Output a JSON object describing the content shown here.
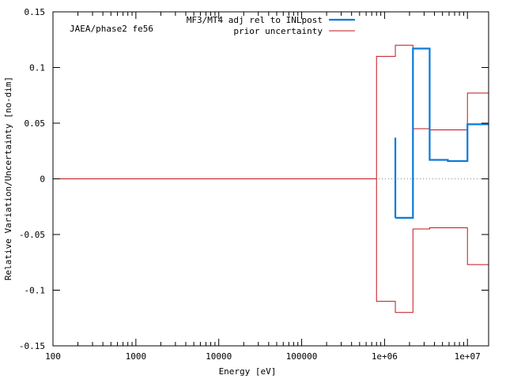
{
  "chart_data": {
    "type": "line",
    "annotation": "JAEA/phase2 fe56",
    "xlabel": "Energy [eV]",
    "ylabel": "Relative Variation/Uncertainty [no-dim]",
    "xscale": "log",
    "xlim": [
      100,
      18000000
    ],
    "ylim": [
      -0.15,
      0.15
    ],
    "x_ticks": [
      {
        "value": 100,
        "label": "100"
      },
      {
        "value": 1000,
        "label": "1000"
      },
      {
        "value": 10000,
        "label": "10000"
      },
      {
        "value": 100000,
        "label": "100000"
      },
      {
        "value": 1000000,
        "label": "1e+06"
      },
      {
        "value": 10000000,
        "label": "1e+07"
      }
    ],
    "y_ticks": [
      {
        "value": 0.15,
        "label": "0.15"
      },
      {
        "value": 0.1,
        "label": "0.1"
      },
      {
        "value": 0.05,
        "label": "0.05"
      },
      {
        "value": 0,
        "label": "0"
      },
      {
        "value": -0.05,
        "label": "-0.05"
      },
      {
        "value": -0.1,
        "label": "-0.1"
      },
      {
        "value": -0.15,
        "label": "-0.15"
      }
    ],
    "grid": false,
    "legend_position": "top-right",
    "series": [
      {
        "name": "MF3/MT4 adj rel to INLpost",
        "color": "#0a7ad8",
        "style": "step",
        "segments": [
          [
            [
              1350000,
              0.037
            ],
            [
              1350000,
              -0.035
            ]
          ],
          [
            [
              1350000,
              -0.035
            ],
            [
              2200000,
              -0.035
            ],
            [
              2200000,
              0.117
            ],
            [
              3500000,
              0.117
            ],
            [
              3500000,
              0.017
            ],
            [
              5800000,
              0.017
            ],
            [
              5800000,
              0.016
            ],
            [
              10000000,
              0.016
            ],
            [
              10000000,
              0.049
            ],
            [
              18000000,
              0.049
            ]
          ]
        ]
      },
      {
        "name": "prior uncertainty",
        "color": "#c0141c",
        "style": "step",
        "segments": [
          [
            [
              100,
              0
            ],
            [
              800000,
              0
            ],
            [
              800000,
              0.11
            ],
            [
              1350000,
              0.11
            ],
            [
              1350000,
              0.12
            ],
            [
              2200000,
              0.12
            ],
            [
              2200000,
              0.045
            ],
            [
              3500000,
              0.045
            ],
            [
              3500000,
              0.044
            ],
            [
              10000000,
              0.044
            ],
            [
              10000000,
              0.077
            ],
            [
              18000000,
              0.077
            ]
          ],
          [
            [
              800000,
              0
            ],
            [
              800000,
              -0.11
            ],
            [
              1350000,
              -0.11
            ],
            [
              1350000,
              -0.12
            ],
            [
              2200000,
              -0.12
            ],
            [
              2200000,
              -0.045
            ],
            [
              3500000,
              -0.045
            ],
            [
              3500000,
              -0.044
            ],
            [
              10000000,
              -0.044
            ],
            [
              10000000,
              -0.077
            ],
            [
              18000000,
              -0.077
            ]
          ]
        ]
      }
    ],
    "zero_line": {
      "y": 0,
      "color": "#888888",
      "style": "dotted"
    }
  }
}
